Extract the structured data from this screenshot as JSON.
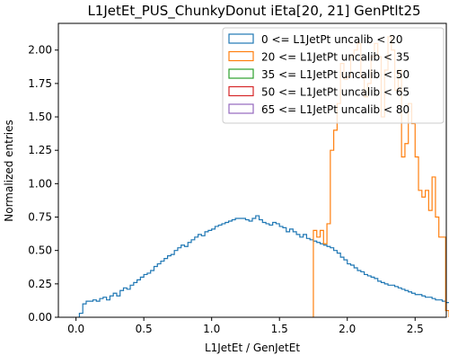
{
  "chart_data": {
    "type": "histogram",
    "title": "L1JetEt_PUS_ChunkyDonut iEta[20, 21] GenPtlt25",
    "xlabel": "L1JetEt / GenJetEt",
    "ylabel": "Normalized entries",
    "xlim": [
      -0.13,
      2.73
    ],
    "ylim": [
      0,
      2.2
    ],
    "xticks": [
      0.0,
      0.5,
      1.0,
      1.5,
      2.0,
      2.5
    ],
    "yticks": [
      0.0,
      0.25,
      0.5,
      0.75,
      1.0,
      1.25,
      1.5,
      1.75,
      2.0
    ],
    "xtick_labels": [
      "0.0",
      "0.5",
      "1.0",
      "1.5",
      "2.0",
      "2.5"
    ],
    "ytick_labels": [
      "0.00",
      "0.25",
      "0.50",
      "0.75",
      "1.00",
      "1.25",
      "1.50",
      "1.75",
      "2.00"
    ],
    "histtype": "step",
    "grid": false,
    "legend_position": "upper right",
    "series": [
      {
        "name": "0 <= L1JetPt uncalib < 20",
        "color": "#1f77b4",
        "bin_width": 0.025,
        "x_start": 0.025,
        "values": [
          0.03,
          0.1,
          0.12,
          0.12,
          0.13,
          0.12,
          0.14,
          0.15,
          0.13,
          0.16,
          0.18,
          0.16,
          0.2,
          0.22,
          0.21,
          0.24,
          0.26,
          0.28,
          0.3,
          0.32,
          0.33,
          0.35,
          0.38,
          0.4,
          0.42,
          0.44,
          0.46,
          0.47,
          0.5,
          0.52,
          0.54,
          0.53,
          0.56,
          0.58,
          0.6,
          0.62,
          0.61,
          0.64,
          0.65,
          0.66,
          0.68,
          0.69,
          0.7,
          0.71,
          0.72,
          0.73,
          0.74,
          0.74,
          0.74,
          0.73,
          0.72,
          0.74,
          0.76,
          0.73,
          0.71,
          0.7,
          0.69,
          0.71,
          0.7,
          0.68,
          0.67,
          0.64,
          0.66,
          0.64,
          0.62,
          0.6,
          0.62,
          0.59,
          0.58,
          0.57,
          0.56,
          0.55,
          0.54,
          0.53,
          0.52,
          0.5,
          0.48,
          0.45,
          0.43,
          0.4,
          0.39,
          0.37,
          0.35,
          0.34,
          0.32,
          0.31,
          0.3,
          0.29,
          0.27,
          0.26,
          0.25,
          0.24,
          0.24,
          0.23,
          0.22,
          0.21,
          0.2,
          0.19,
          0.18,
          0.17,
          0.17,
          0.16,
          0.15,
          0.15,
          0.14,
          0.13,
          0.13,
          0.12,
          0.11,
          0.11,
          0.1,
          0.1,
          0.1,
          0.09,
          0.09,
          0.08,
          0.08
        ]
      },
      {
        "name": "20 <= L1JetPt uncalib < 35",
        "color": "#ff7f0e",
        "bin_width": 0.025,
        "x_start": 1.75,
        "values": [
          0.65,
          0.6,
          0.65,
          0.55,
          0.7,
          1.25,
          1.4,
          1.6,
          1.9,
          1.78,
          1.8,
          1.95,
          2.0,
          2.05,
          1.8,
          1.65,
          1.75,
          1.95,
          2.05,
          1.95,
          1.5,
          1.85,
          2.1,
          2.0,
          1.7,
          1.85,
          1.2,
          1.3,
          1.6,
          1.45,
          1.2,
          0.95,
          0.9,
          0.95,
          0.8,
          1.05,
          0.75,
          0.6,
          0.6,
          0.05
        ]
      },
      {
        "name": "35 <= L1JetPt uncalib < 50",
        "color": "#2ca02c",
        "values": []
      },
      {
        "name": "50 <= L1JetPt uncalib < 65",
        "color": "#d62728",
        "values": []
      },
      {
        "name": "65 <= L1JetPt uncalib < 80",
        "color": "#9467bd",
        "values": []
      }
    ]
  }
}
